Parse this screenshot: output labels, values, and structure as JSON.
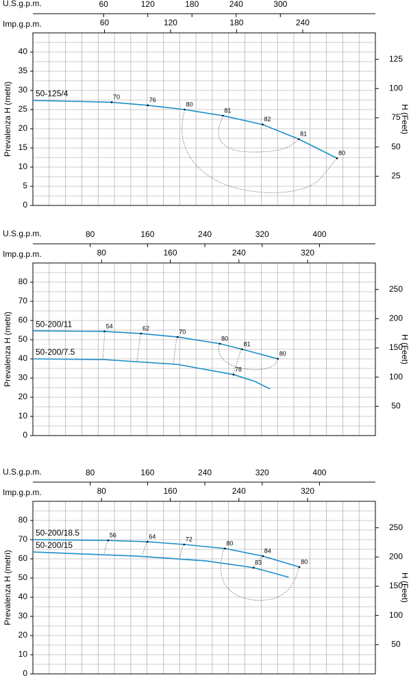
{
  "chart_data": [
    {
      "type": "line",
      "x_label": "U.S.g.p.m.",
      "x2_label": "Imp.g.p.m.",
      "y_label": "Prevalenza H (metri)",
      "y2_label": "H (Feet)",
      "xlim": [
        -36,
        429
      ],
      "xticks": [
        60,
        120,
        180,
        240,
        300
      ],
      "x2lim": [
        -5,
        306
      ],
      "x2ticks": [
        60,
        120,
        180,
        240
      ],
      "ylim": [
        0,
        45
      ],
      "yticks": [
        0,
        5,
        10,
        15,
        20,
        25,
        30,
        35,
        40
      ],
      "y2lim": [
        0,
        147.6
      ],
      "y2ticks": [
        25,
        50,
        75,
        100,
        125
      ],
      "grid": true,
      "series": [
        {
          "name": "50-125/4",
          "color": "#1a8dc8",
          "x": [
            -36,
            71,
            120,
            170,
            222,
            276,
            325,
            377
          ],
          "values": [
            27.4,
            26.9,
            26.1,
            25,
            23.4,
            21.1,
            17.3,
            12.3
          ],
          "efficiency": {
            "x": [
              71,
              120,
              170,
              222,
              276,
              325,
              377
            ],
            "y": [
              26.9,
              26.1,
              25,
              23.4,
              21.1,
              17.3,
              12.3
            ],
            "values": [
              70,
              76,
              80,
              81,
              82,
              81,
              80
            ]
          }
        }
      ]
    },
    {
      "type": "line",
      "x_label": "U.S.g.p.m.",
      "x2_label": "Imp.g.p.m.",
      "y_label": "Prevalenza H (metri)",
      "y2_label": "H (Feet)",
      "xlim": [
        0,
        478
      ],
      "xticks": [
        80,
        160,
        240,
        320,
        400
      ],
      "x2lim": [
        0,
        399
      ],
      "x2ticks": [
        80,
        160,
        240,
        320
      ],
      "ylim": [
        0,
        90
      ],
      "yticks": [
        0,
        10,
        20,
        30,
        40,
        50,
        60,
        70,
        80
      ],
      "y2lim": [
        0,
        295.3
      ],
      "y2ticks": [
        50,
        100,
        150,
        200,
        250
      ],
      "grid": true,
      "series": [
        {
          "name": "50-200/11",
          "color": "#1a8dc8",
          "x": [
            0,
            100,
            151,
            202,
            261,
            292,
            342
          ],
          "values": [
            54.6,
            54.3,
            53.2,
            51.4,
            47.9,
            45,
            40
          ],
          "efficiency": {
            "x": [
              100,
              151,
              202,
              261,
              292,
              342
            ],
            "y": [
              54.3,
              53.2,
              51.4,
              47.9,
              45,
              40
            ],
            "values": [
              54,
              62,
              70,
              80,
              81,
              80
            ]
          }
        },
        {
          "name": "50-200/7.5",
          "color": "#1a8dc8",
          "x": [
            0,
            100,
            202,
            280,
            310,
            331
          ],
          "values": [
            40,
            39.6,
            37.1,
            31.8,
            28.2,
            24.3
          ],
          "efficiency": {
            "x": [
              280
            ],
            "y": [
              31.8
            ],
            "values": [
              78
            ]
          }
        }
      ]
    },
    {
      "type": "line",
      "x_label": "U.S.g.p.m.",
      "x2_label": "Imp.g.p.m.",
      "y_label": "Prevalenza H (metri)",
      "y2_label": "H (Feet)",
      "xlim": [
        0,
        478
      ],
      "xticks": [
        80,
        160,
        240,
        320,
        400
      ],
      "x2lim": [
        0,
        399
      ],
      "x2ticks": [
        80,
        160,
        240,
        320
      ],
      "ylim": [
        0,
        90
      ],
      "yticks": [
        0,
        10,
        20,
        30,
        40,
        50,
        60,
        70,
        80
      ],
      "y2lim": [
        0,
        295.3
      ],
      "y2ticks": [
        50,
        100,
        150,
        200,
        250
      ],
      "grid": true,
      "series": [
        {
          "name": "50-200/18.5",
          "color": "#1a8dc8",
          "x": [
            0,
            105,
            160,
            211,
            268,
            321,
            372
          ],
          "values": [
            70,
            69.6,
            68.9,
            67.5,
            65.4,
            61.4,
            55.7
          ],
          "efficiency": {
            "x": [
              105,
              160,
              211,
              268,
              321,
              372
            ],
            "y": [
              69.6,
              68.9,
              67.5,
              65.4,
              61.4,
              55.7
            ],
            "values": [
              56,
              64,
              72,
              80,
              84,
              80
            ]
          }
        },
        {
          "name": "50-200/15",
          "color": "#1a8dc8",
          "x": [
            0,
            146,
            242,
            308,
            357
          ],
          "values": [
            63.6,
            61.4,
            58.9,
            55.4,
            50.4
          ],
          "efficiency": {
            "x": [
              308
            ],
            "y": [
              55.4
            ],
            "values": [
              83
            ]
          }
        }
      ]
    }
  ]
}
